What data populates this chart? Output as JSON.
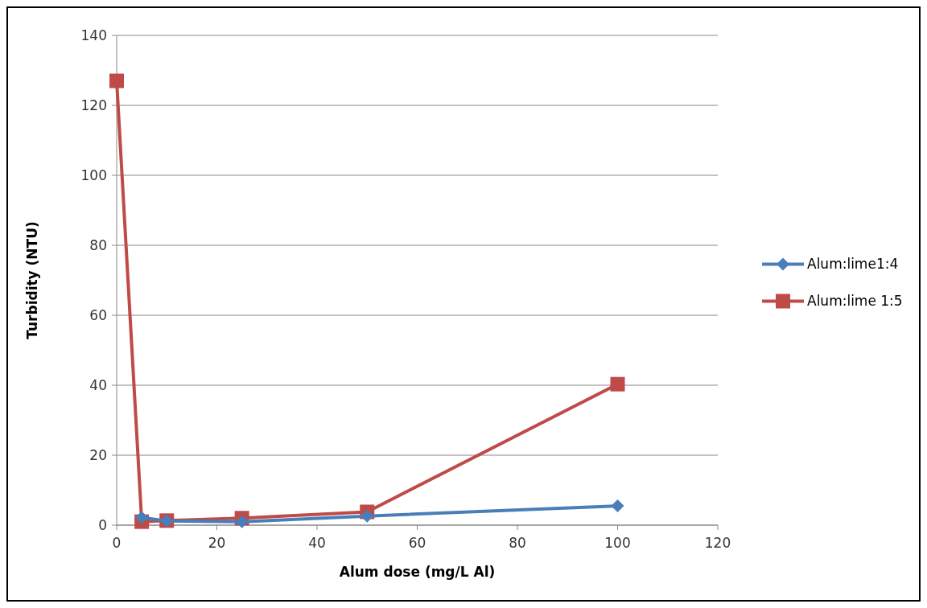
{
  "chart_data": {
    "type": "line",
    "xlabel": "Alum dose (mg/L Al)",
    "ylabel": "Turbidity (NTU)",
    "xlim": [
      0,
      120
    ],
    "xticks": [
      0,
      20,
      40,
      60,
      80,
      100,
      120
    ],
    "ylim": [
      0,
      140
    ],
    "yticks": [
      0,
      20,
      40,
      60,
      80,
      100,
      120,
      140
    ],
    "grid": "y",
    "legend": "right",
    "line_style": "solid",
    "series": [
      {
        "name": "Alum:lime1:4",
        "color": "#4a7ebb",
        "marker": "diamond",
        "x": [
          5,
          10,
          25,
          50,
          100
        ],
        "values": [
          2.2,
          1.2,
          1.0,
          2.6,
          5.5
        ]
      },
      {
        "name": "Alum:lime 1:5",
        "color": "#be4b48",
        "marker": "square",
        "x": [
          0,
          5,
          10,
          25,
          50,
          100
        ],
        "values": [
          127,
          1,
          1.3,
          2,
          3.8,
          40.3
        ]
      }
    ]
  }
}
